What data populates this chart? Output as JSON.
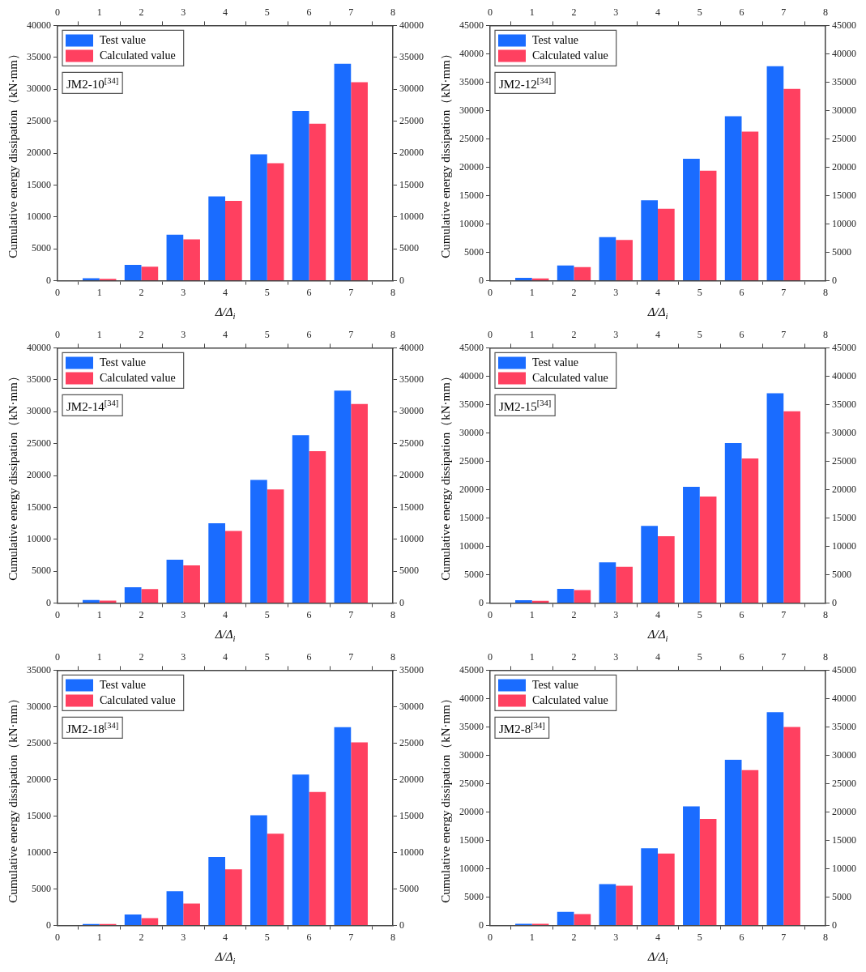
{
  "chart_data": [
    {
      "type": "bar",
      "xlabel": "Δ/Δ$_{i}$",
      "ylabel": "Cumulative energy dissipation（kN·mm）",
      "x": [
        1,
        2,
        3,
        4,
        5,
        6,
        7
      ],
      "xlim": [
        0,
        8
      ],
      "xticks": [
        0,
        1,
        2,
        3,
        4,
        5,
        6,
        7,
        8
      ],
      "x2lim": [
        0,
        8
      ],
      "x2ticks": [
        0,
        1,
        2,
        3,
        4,
        5,
        6,
        7,
        8
      ],
      "ylim": [
        0,
        40000
      ],
      "yticks": [
        0,
        5000,
        10000,
        15000,
        20000,
        25000,
        30000,
        35000,
        40000
      ],
      "y2lim": [
        0,
        40000
      ],
      "y2ticks": [
        0,
        5000,
        10000,
        15000,
        20000,
        25000,
        30000,
        35000,
        40000
      ],
      "legend": "top left",
      "annotations": [
        "JM2-10$^{[34]}$"
      ],
      "series": [
        {
          "name": "Test value",
          "color": "#1a6cff",
          "values": [
            400,
            2500,
            7200,
            13200,
            19800,
            26600,
            34000
          ]
        },
        {
          "name": "Calculated value",
          "color": "#ff4060",
          "values": [
            300,
            2200,
            6500,
            12500,
            18400,
            24600,
            31100
          ]
        }
      ]
    },
    {
      "type": "bar",
      "xlabel": "Δ/Δ$_{i}$",
      "ylabel": "Cumulative energy dissipation（kN·mm）",
      "x": [
        1,
        2,
        3,
        4,
        5,
        6,
        7
      ],
      "xlim": [
        0,
        8
      ],
      "xticks": [
        0,
        1,
        2,
        3,
        4,
        5,
        6,
        7,
        8
      ],
      "x2lim": [
        0,
        8
      ],
      "x2ticks": [
        0,
        1,
        2,
        3,
        4,
        5,
        6,
        7,
        8
      ],
      "ylim": [
        0,
        45000
      ],
      "yticks": [
        0,
        5000,
        10000,
        15000,
        20000,
        25000,
        30000,
        35000,
        40000,
        45000
      ],
      "y2lim": [
        0,
        45000
      ],
      "y2ticks": [
        0,
        5000,
        10000,
        15000,
        20000,
        25000,
        30000,
        35000,
        40000,
        45000
      ],
      "legend": "top left",
      "annotations": [
        "JM2-12$^{[34]}$"
      ],
      "series": [
        {
          "name": "Test value",
          "color": "#1a6cff",
          "values": [
            500,
            2700,
            7700,
            14200,
            21500,
            29000,
            37800
          ]
        },
        {
          "name": "Calculated value",
          "color": "#ff4060",
          "values": [
            400,
            2400,
            7200,
            12700,
            19400,
            26300,
            33800
          ]
        }
      ]
    },
    {
      "type": "bar",
      "xlabel": "Δ/Δ$_{i}$",
      "ylabel": "Cumulative energy dissipation（kN·mm）",
      "x": [
        1,
        2,
        3,
        4,
        5,
        6,
        7
      ],
      "xlim": [
        0,
        8
      ],
      "xticks": [
        0,
        1,
        2,
        3,
        4,
        5,
        6,
        7,
        8
      ],
      "x2lim": [
        0,
        8
      ],
      "x2ticks": [
        0,
        1,
        2,
        3,
        4,
        5,
        6,
        7,
        8
      ],
      "ylim": [
        0,
        40000
      ],
      "yticks": [
        0,
        5000,
        10000,
        15000,
        20000,
        25000,
        30000,
        35000,
        40000
      ],
      "y2lim": [
        0,
        40000
      ],
      "y2ticks": [
        0,
        5000,
        10000,
        15000,
        20000,
        25000,
        30000,
        35000,
        40000
      ],
      "legend": "top left",
      "annotations": [
        "JM2-14$^{[34]}$"
      ],
      "series": [
        {
          "name": "Test value",
          "color": "#1a6cff",
          "values": [
            500,
            2500,
            6800,
            12500,
            19300,
            26300,
            33300
          ]
        },
        {
          "name": "Calculated value",
          "color": "#ff4060",
          "values": [
            400,
            2200,
            5900,
            11300,
            17800,
            23800,
            31200
          ]
        }
      ]
    },
    {
      "type": "bar",
      "xlabel": "Δ/Δ$_{i}$",
      "ylabel": "Cumulative energy dissipation（kN·mm）",
      "x": [
        1,
        2,
        3,
        4,
        5,
        6,
        7
      ],
      "xlim": [
        0,
        8
      ],
      "xticks": [
        0,
        1,
        2,
        3,
        4,
        5,
        6,
        7,
        8
      ],
      "x2lim": [
        0,
        8
      ],
      "x2ticks": [
        0,
        1,
        2,
        3,
        4,
        5,
        6,
        7,
        8
      ],
      "ylim": [
        0,
        45000
      ],
      "yticks": [
        0,
        5000,
        10000,
        15000,
        20000,
        25000,
        30000,
        35000,
        40000,
        45000
      ],
      "y2lim": [
        0,
        45000
      ],
      "y2ticks": [
        0,
        5000,
        10000,
        15000,
        20000,
        25000,
        30000,
        35000,
        40000,
        45000
      ],
      "legend": "top left",
      "annotations": [
        "JM2-15$^{[34]}$"
      ],
      "series": [
        {
          "name": "Test value",
          "color": "#1a6cff",
          "values": [
            500,
            2500,
            7200,
            13600,
            20500,
            28200,
            37000
          ]
        },
        {
          "name": "Calculated value",
          "color": "#ff4060",
          "values": [
            400,
            2300,
            6400,
            11800,
            18800,
            25500,
            33800
          ]
        }
      ]
    },
    {
      "type": "bar",
      "xlabel": "Δ/Δ$_{i}$",
      "ylabel": "Cumulative energy dissipation（kN·mm）",
      "x": [
        1,
        2,
        3,
        4,
        5,
        6,
        7
      ],
      "xlim": [
        0,
        8
      ],
      "xticks": [
        0,
        1,
        2,
        3,
        4,
        5,
        6,
        7,
        8
      ],
      "x2lim": [
        0,
        8
      ],
      "x2ticks": [
        0,
        1,
        2,
        3,
        4,
        5,
        6,
        7,
        8
      ],
      "ylim": [
        0,
        35000
      ],
      "yticks": [
        0,
        5000,
        10000,
        15000,
        20000,
        25000,
        30000,
        35000
      ],
      "y2lim": [
        0,
        35000
      ],
      "y2ticks": [
        0,
        5000,
        10000,
        15000,
        20000,
        25000,
        30000,
        35000
      ],
      "legend": "top left",
      "annotations": [
        "JM2-18$^{[34]}$"
      ],
      "series": [
        {
          "name": "Test value",
          "color": "#1a6cff",
          "values": [
            200,
            1500,
            4700,
            9400,
            15100,
            20700,
            27200
          ]
        },
        {
          "name": "Calculated value",
          "color": "#ff4060",
          "values": [
            200,
            1000,
            3000,
            7700,
            12600,
            18300,
            25100
          ]
        }
      ]
    },
    {
      "type": "bar",
      "xlabel": "Δ/Δ$_{i}$",
      "ylabel": "Cumulative energy dissipation（kN·mm）",
      "x": [
        1,
        2,
        3,
        4,
        5,
        6,
        7
      ],
      "xlim": [
        0,
        8
      ],
      "xticks": [
        0,
        1,
        2,
        3,
        4,
        5,
        6,
        7,
        8
      ],
      "x2lim": [
        0,
        8
      ],
      "x2ticks": [
        0,
        1,
        2,
        3,
        4,
        5,
        6,
        7,
        8
      ],
      "ylim": [
        0,
        45000
      ],
      "yticks": [
        0,
        5000,
        10000,
        15000,
        20000,
        25000,
        30000,
        35000,
        40000,
        45000
      ],
      "y2lim": [
        0,
        45000
      ],
      "y2ticks": [
        0,
        5000,
        10000,
        15000,
        20000,
        25000,
        30000,
        35000,
        40000,
        45000
      ],
      "legend": "top left",
      "annotations": [
        "JM2-8$^{[34]}$"
      ],
      "series": [
        {
          "name": "Test value",
          "color": "#1a6cff",
          "values": [
            300,
            2400,
            7300,
            13600,
            21000,
            29200,
            37600
          ]
        },
        {
          "name": "Calculated value",
          "color": "#ff4060",
          "values": [
            300,
            2000,
            7000,
            12700,
            18800,
            27400,
            35000
          ]
        }
      ]
    }
  ]
}
